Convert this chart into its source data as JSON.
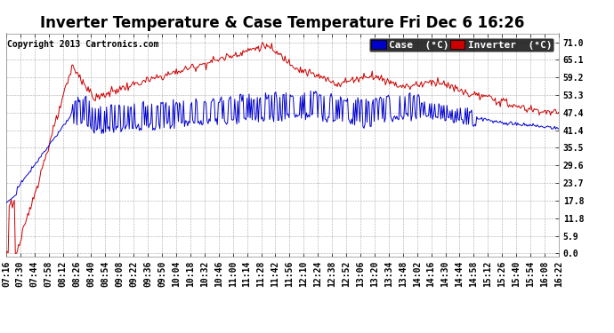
{
  "title": "Inverter Temperature & Case Temperature Fri Dec 6 16:26",
  "copyright": "Copyright 2013 Cartronics.com",
  "legend_case_label": "Case  (°C)",
  "legend_inverter_label": "Inverter  (°C)",
  "case_color": "#0000cc",
  "inverter_color": "#cc0000",
  "background_color": "#ffffff",
  "plot_bg_color": "#ffffff",
  "yticks": [
    0.0,
    5.9,
    11.8,
    17.8,
    23.7,
    29.6,
    35.5,
    41.4,
    47.4,
    53.3,
    59.2,
    65.1,
    71.0
  ],
  "ylim": [
    -1.0,
    74.0
  ],
  "xtick_labels": [
    "07:16",
    "07:30",
    "07:44",
    "07:58",
    "08:12",
    "08:26",
    "08:40",
    "08:54",
    "09:08",
    "09:22",
    "09:36",
    "09:50",
    "10:04",
    "10:18",
    "10:32",
    "10:46",
    "11:00",
    "11:14",
    "11:28",
    "11:42",
    "11:56",
    "12:10",
    "12:24",
    "12:38",
    "12:52",
    "13:06",
    "13:20",
    "13:34",
    "13:48",
    "14:02",
    "14:16",
    "14:30",
    "14:44",
    "14:58",
    "15:12",
    "15:26",
    "15:40",
    "15:54",
    "16:08",
    "16:22"
  ],
  "title_fontsize": 12,
  "tick_fontsize": 7,
  "copyright_fontsize": 7,
  "legend_fontsize": 8
}
